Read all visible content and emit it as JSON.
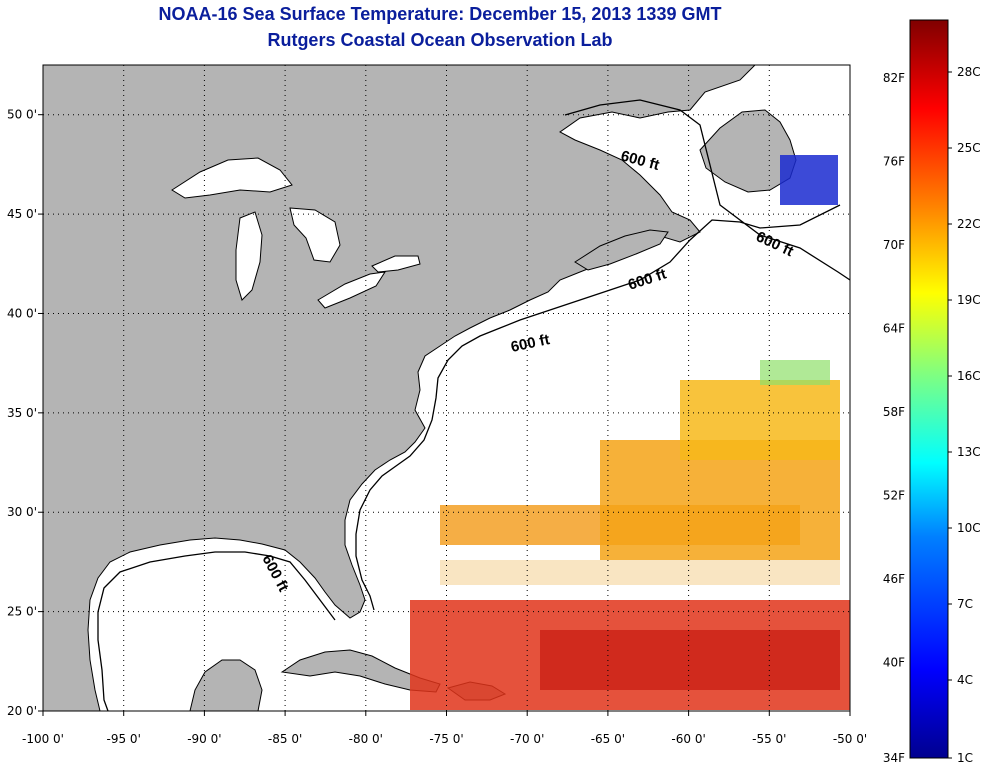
{
  "title": "NOAA-16 Sea Surface Temperature:  December 15, 2013 1339 GMT",
  "subtitle": "Rutgers Coastal Ocean Observation Lab",
  "map": {
    "lon_range": [
      -100,
      -50
    ],
    "lat_range": [
      20,
      52.5
    ],
    "lon_ticks": [
      "-100 0'",
      "-95 0'",
      "-90 0'",
      "-85 0'",
      "-80 0'",
      "-75 0'",
      "-70 0'",
      "-65 0'",
      "-60 0'",
      "-55 0'",
      "-50 0'"
    ],
    "lat_ticks": [
      "20 0'",
      "25 0'",
      "30 0'",
      "35 0'",
      "40 0'",
      "45 0'",
      "50 0'"
    ],
    "contour_label": "600 ft",
    "land_color": "#b4b4b4",
    "water_color": "#ffffff"
  },
  "colorbar": {
    "left_labels": [
      "82F",
      "76F",
      "70F",
      "64F",
      "58F",
      "52F",
      "46F",
      "40F",
      "34F"
    ],
    "right_labels": [
      "28C",
      "25C",
      "22C",
      "19C",
      "16C",
      "13C",
      "10C",
      "7C",
      "4C",
      "1C"
    ],
    "colors": [
      "#00008f",
      "#0000ff",
      "#0080ff",
      "#00ffff",
      "#80ff80",
      "#ffff00",
      "#ff8000",
      "#ff0000",
      "#800000"
    ]
  }
}
